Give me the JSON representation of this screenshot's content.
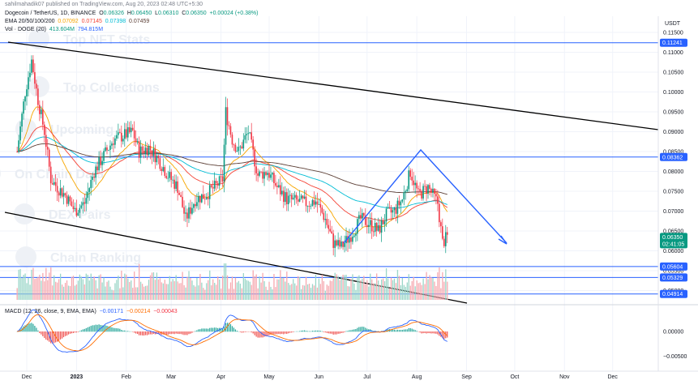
{
  "header": {
    "published": "sahilmahadik07 published on TradingView.com, Aug 20, 2023 02:48 UTC+5:30",
    "symbol": "Dogecoin / TetherUS, 1D, BINANCE",
    "ohlc": {
      "o_label": "O",
      "o": "0.06326",
      "h_label": "H",
      "h": "0.06450",
      "l_label": "L",
      "l": "0.06310",
      "c_label": "C",
      "c": "0.06350",
      "change": "+0.00024 (+0.38%)"
    },
    "ema": {
      "label": "EMA 20/50/100/200",
      "v1": "0.07092",
      "v2": "0.07145",
      "v3": "0.07398",
      "v4": "0.07459"
    },
    "vol": {
      "label": "Vol · DOGE (20)",
      "v1": "413.604M",
      "v2": "794.815M"
    },
    "macd": {
      "label": "MACD (12, 26, close, 9, EMA, EMA)",
      "v1": "−0.00171",
      "v2": "−0.00214",
      "v3": "−0.00043"
    }
  },
  "watermarks": [
    "Top NFT Stats",
    "Top Collections",
    "Upcoming",
    "On Chain Data",
    "DEX Pairs",
    "Chain Ranking"
  ],
  "colors": {
    "up": "#089981",
    "down": "#f23645",
    "hline": "#2962ff",
    "pattern": "#2962ff",
    "channel": "#000000",
    "ema20": "#f7a600",
    "ema50": "#f44336",
    "ema100": "#00bcd4",
    "ema200": "#5d4037",
    "macd": "#2962ff",
    "signal": "#ff6d00",
    "price_tag": "#089981"
  },
  "axis": {
    "currency": "USDT",
    "y_ticks": [
      "0.11500",
      "0.11000",
      "0.10500",
      "0.10000",
      "0.09500",
      "0.09000",
      "0.08500",
      "0.08000",
      "0.07500",
      "0.07000",
      "0.06500",
      "0.06000",
      "0.05500",
      "0.05000"
    ],
    "x_ticks": [
      "Dec",
      "2023",
      "Feb",
      "Mar",
      "Apr",
      "May",
      "Jun",
      "Jul",
      "Aug",
      "Sep",
      "Oct",
      "Nov",
      "Dec"
    ],
    "macd_ticks": [
      "0.00000",
      "−0.00500"
    ]
  },
  "price_labels": [
    "0.11241",
    "0.08362",
    "0.05604",
    "0.05329",
    "0.04914"
  ],
  "last_price": {
    "price": "0.06350",
    "countdown": "02:41:05"
  },
  "chart_data": {
    "type": "line",
    "title": "Dogecoin / TetherUS, 1D, BINANCE",
    "ylim": [
      0.0465,
      0.118
    ],
    "x_range": [
      "2022-11-20",
      "2023-12-20"
    ],
    "horizontal_levels": [
      0.11241,
      0.08362,
      0.05604,
      0.05329,
      0.04914
    ],
    "closes": [
      [
        "2022-11-25",
        0.085
      ],
      [
        "2022-11-30",
        0.1
      ],
      [
        "2022-12-04",
        0.108
      ],
      [
        "2022-12-08",
        0.098
      ],
      [
        "2022-12-12",
        0.09
      ],
      [
        "2022-12-16",
        0.078
      ],
      [
        "2022-12-20",
        0.076
      ],
      [
        "2022-12-25",
        0.074
      ],
      [
        "2022-12-31",
        0.07
      ],
      [
        "2023-01-06",
        0.072
      ],
      [
        "2023-01-12",
        0.08
      ],
      [
        "2023-01-18",
        0.084
      ],
      [
        "2023-01-24",
        0.088
      ],
      [
        "2023-01-30",
        0.089
      ],
      [
        "2023-02-05",
        0.09
      ],
      [
        "2023-02-09",
        0.085
      ],
      [
        "2023-02-15",
        0.086
      ],
      [
        "2023-02-21",
        0.083
      ],
      [
        "2023-02-27",
        0.079
      ],
      [
        "2023-03-05",
        0.076
      ],
      [
        "2023-03-10",
        0.068
      ],
      [
        "2023-03-16",
        0.073
      ],
      [
        "2023-03-22",
        0.074
      ],
      [
        "2023-03-28",
        0.076
      ],
      [
        "2023-04-02",
        0.078
      ],
      [
        "2023-04-04",
        0.095
      ],
      [
        "2023-04-08",
        0.088
      ],
      [
        "2023-04-12",
        0.085
      ],
      [
        "2023-04-18",
        0.09
      ],
      [
        "2023-04-24",
        0.079
      ],
      [
        "2023-04-30",
        0.08
      ],
      [
        "2023-05-06",
        0.076
      ],
      [
        "2023-05-12",
        0.073
      ],
      [
        "2023-05-18",
        0.0725
      ],
      [
        "2023-05-24",
        0.072
      ],
      [
        "2023-05-30",
        0.0725
      ],
      [
        "2023-06-05",
        0.068
      ],
      [
        "2023-06-10",
        0.062
      ],
      [
        "2023-06-15",
        0.061
      ],
      [
        "2023-06-21",
        0.064
      ],
      [
        "2023-06-27",
        0.068
      ],
      [
        "2023-07-02",
        0.067
      ],
      [
        "2023-07-08",
        0.065
      ],
      [
        "2023-07-13",
        0.069
      ],
      [
        "2023-07-18",
        0.07
      ],
      [
        "2023-07-23",
        0.073
      ],
      [
        "2023-07-28",
        0.08
      ],
      [
        "2023-08-02",
        0.074
      ],
      [
        "2023-08-08",
        0.076
      ],
      [
        "2023-08-14",
        0.072
      ],
      [
        "2023-08-17",
        0.062
      ],
      [
        "2023-08-20",
        0.0635
      ]
    ]
  }
}
